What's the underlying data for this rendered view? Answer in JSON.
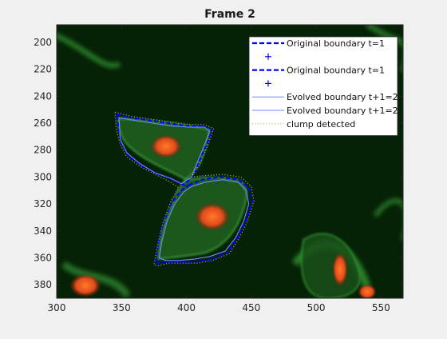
{
  "chart_data": {
    "type": "scatter",
    "title": "Frame 2",
    "xlabel": "",
    "ylabel": "",
    "xlim": [
      300,
      567
    ],
    "ylim": [
      390,
      187
    ],
    "y_reversed": true,
    "x_ticks": [
      300,
      350,
      400,
      450,
      500,
      550
    ],
    "y_ticks": [
      200,
      220,
      240,
      260,
      280,
      300,
      320,
      340,
      360,
      380
    ],
    "grid": false,
    "background": "#062206",
    "legend_position": "top-right",
    "legend": [
      {
        "label": "Original boundary t=1",
        "style": "dashed",
        "color": "#0000ff"
      },
      {
        "label": "",
        "style": "marker-plus",
        "color": "#0000ff"
      },
      {
        "label": "Original boundary t=1",
        "style": "dashed",
        "color": "#0000ff"
      },
      {
        "label": "",
        "style": "marker-plus",
        "color": "#0000ff"
      },
      {
        "label": "Evolved boundary t+1=2",
        "style": "solid",
        "color": "#6f8cff"
      },
      {
        "label": "Evolved boundary t+1=2",
        "style": "solid",
        "color": "#6f8cff"
      },
      {
        "label": "clump detected",
        "style": "dotted",
        "color": "#b8b84a"
      }
    ],
    "series": [
      {
        "name": "Original boundary t=1",
        "style": "dashed",
        "color": "#0000ff",
        "x": [
          346,
          358,
          372,
          386,
          400,
          412,
          420,
          416,
          410,
          406,
          398,
          390,
          378,
          366,
          356,
          350,
          348,
          346
        ],
        "y": [
          253,
          256,
          258,
          260,
          262,
          262,
          265,
          275,
          288,
          298,
          306,
          302,
          298,
          292,
          285,
          276,
          265,
          253
        ]
      },
      {
        "name": "Original boundary t=1",
        "style": "dashed",
        "color": "#0000ff",
        "x": [
          402,
          412,
          426,
          440,
          448,
          451,
          446,
          440,
          432,
          420,
          408,
          396,
          386,
          380,
          376,
          378,
          382,
          388,
          396,
          402
        ],
        "y": [
          306,
          302,
          300,
          302,
          308,
          318,
          332,
          344,
          356,
          361,
          363,
          363,
          363,
          364,
          364,
          350,
          335,
          320,
          310,
          306
        ]
      },
      {
        "name": "Evolved boundary t+1=2",
        "style": "solid",
        "color": "#6f8cff",
        "x": [
          348,
          360,
          374,
          388,
          402,
          414,
          418,
          414,
          408,
          404,
          396,
          388,
          376,
          364,
          354,
          349,
          348
        ],
        "y": [
          256,
          258,
          260,
          262,
          263,
          263,
          266,
          276,
          290,
          300,
          305,
          301,
          297,
          290,
          282,
          272,
          256
        ]
      },
      {
        "name": "Evolved boundary t+1=2",
        "style": "solid",
        "color": "#6f8cff",
        "x": [
          404,
          414,
          428,
          440,
          446,
          448,
          444,
          438,
          430,
          418,
          406,
          394,
          384,
          379,
          381,
          385,
          391,
          398,
          404
        ],
        "y": [
          307,
          304,
          302,
          304,
          310,
          320,
          333,
          345,
          355,
          359,
          361,
          362,
          362,
          360,
          348,
          333,
          320,
          311,
          307
        ]
      },
      {
        "name": "clump detected",
        "style": "dotted",
        "color": "#b8b84a",
        "x": [
          345,
          358,
          372,
          386,
          400,
          413,
          421,
          417,
          411,
          404,
          414,
          428,
          442,
          450,
          452,
          447,
          441,
          433,
          420,
          408,
          396,
          386,
          378,
          375,
          378,
          382,
          388,
          394,
          388,
          376,
          364,
          354,
          349,
          346,
          345
        ],
        "y": [
          252,
          255,
          257,
          259,
          261,
          261,
          264,
          275,
          289,
          300,
          299,
          298,
          300,
          307,
          318,
          333,
          345,
          357,
          362,
          364,
          364,
          364,
          366,
          365,
          350,
          334,
          318,
          308,
          304,
          298,
          292,
          285,
          276,
          265,
          252
        ]
      }
    ]
  }
}
